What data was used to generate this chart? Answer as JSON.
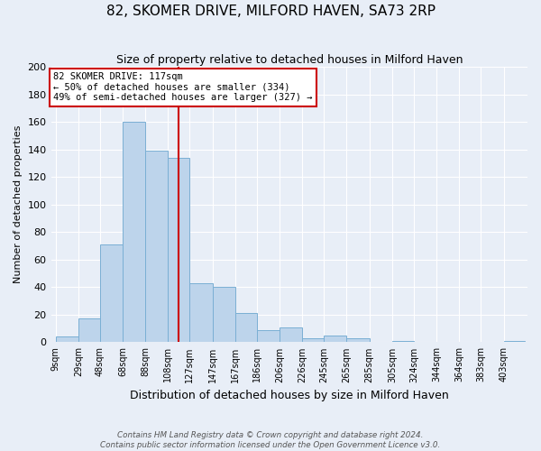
{
  "title": "82, SKOMER DRIVE, MILFORD HAVEN, SA73 2RP",
  "subtitle": "Size of property relative to detached houses in Milford Haven",
  "xlabel": "Distribution of detached houses by size in Milford Haven",
  "ylabel": "Number of detached properties",
  "bar_labels": [
    "9sqm",
    "29sqm",
    "48sqm",
    "68sqm",
    "88sqm",
    "108sqm",
    "127sqm",
    "147sqm",
    "167sqm",
    "186sqm",
    "206sqm",
    "226sqm",
    "245sqm",
    "265sqm",
    "285sqm",
    "305sqm",
    "324sqm",
    "344sqm",
    "364sqm",
    "383sqm",
    "403sqm"
  ],
  "bar_values": [
    4,
    17,
    71,
    160,
    139,
    134,
    43,
    40,
    21,
    9,
    11,
    3,
    5,
    3,
    0,
    1,
    0,
    0,
    0,
    0,
    1
  ],
  "bar_color": "#bdd4eb",
  "bar_edge_color": "#7aafd4",
  "ylim": [
    0,
    200
  ],
  "yticks": [
    0,
    20,
    40,
    60,
    80,
    100,
    120,
    140,
    160,
    180,
    200
  ],
  "property_line_color": "#cc0000",
  "annotation_title": "82 SKOMER DRIVE: 117sqm",
  "annotation_line1": "← 50% of detached houses are smaller (334)",
  "annotation_line2": "49% of semi-detached houses are larger (327) →",
  "annotation_box_color": "#cc0000",
  "footer1": "Contains HM Land Registry data © Crown copyright and database right 2024.",
  "footer2": "Contains public sector information licensed under the Open Government Licence v3.0.",
  "bg_color": "#e8eef7",
  "plot_bg_color": "#e8eef7",
  "grid_color": "#ffffff",
  "bin_edges": [
    9,
    29,
    48,
    68,
    88,
    108,
    127,
    147,
    167,
    186,
    206,
    226,
    245,
    265,
    285,
    305,
    324,
    344,
    364,
    383,
    403,
    422
  ]
}
